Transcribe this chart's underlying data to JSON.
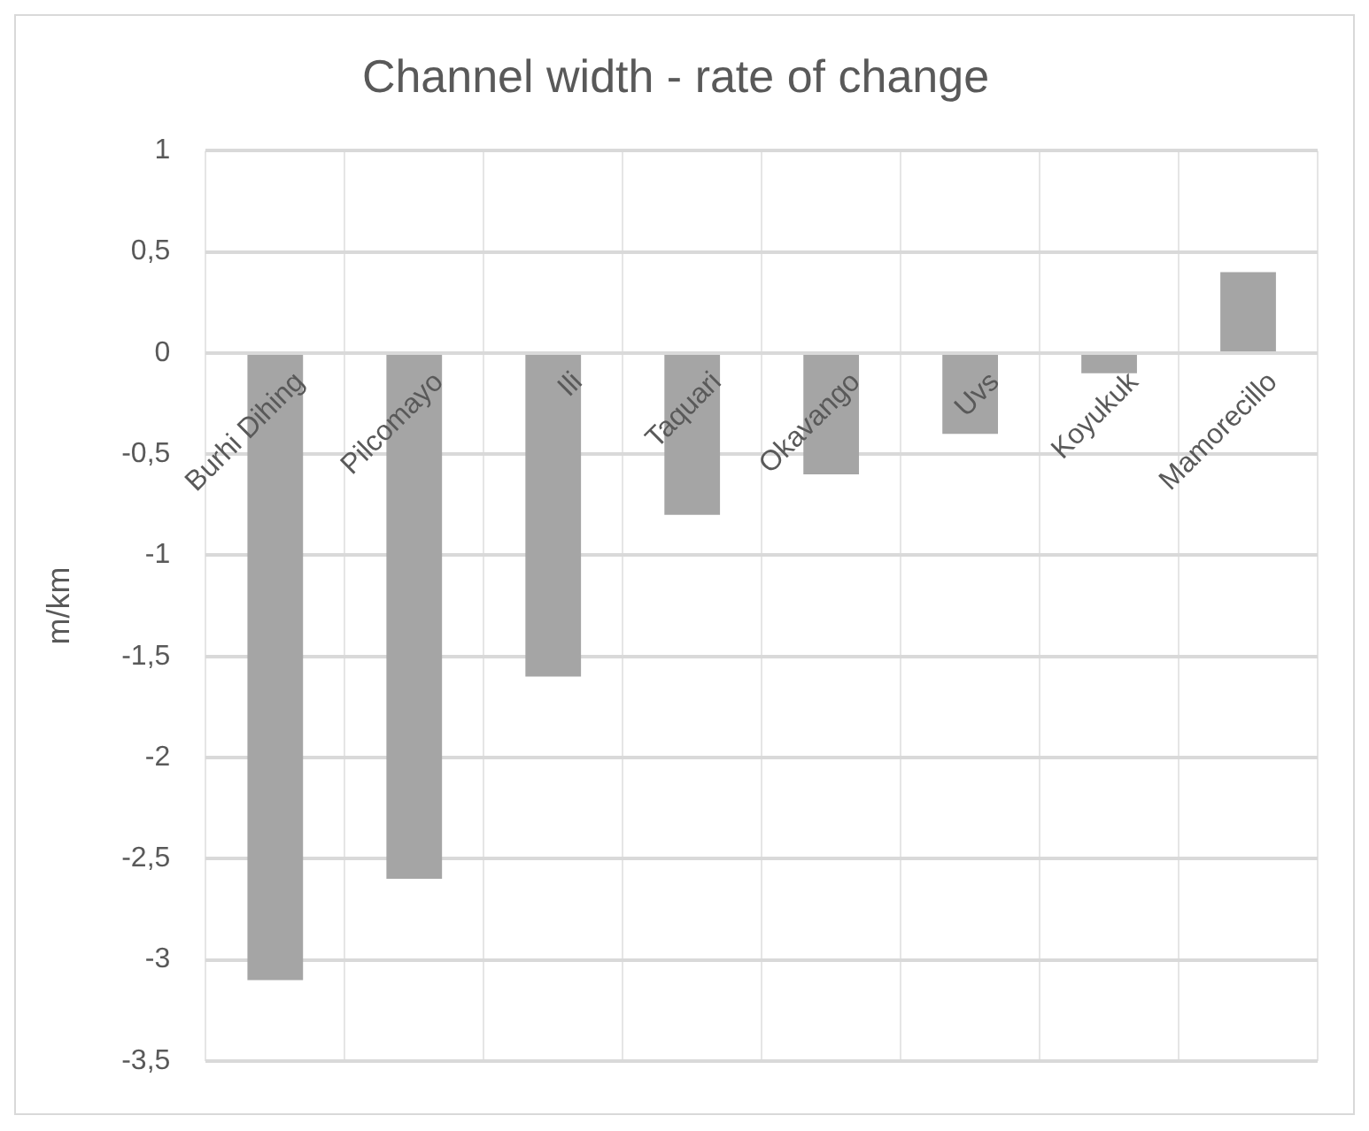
{
  "chart_data": {
    "type": "bar",
    "title": "Channel width - rate of change",
    "ylabel": "m/km",
    "categories": [
      "Burhi Dihing",
      "Pilcomayo",
      "Ili",
      "Taquari",
      "Okavango",
      "Uvs",
      "Koyukuk",
      "Mamorecillo"
    ],
    "values": [
      -3.1,
      -2.6,
      -1.6,
      -0.8,
      -0.6,
      -0.4,
      -0.1,
      0.4
    ],
    "color": "#a5a5a5",
    "ylim": [
      -3.5,
      1
    ],
    "yticks": [
      {
        "value": -3.5,
        "label": "-3,5"
      },
      {
        "value": -3,
        "label": "-3"
      },
      {
        "value": -2.5,
        "label": "-2,5"
      },
      {
        "value": -2,
        "label": "-2"
      },
      {
        "value": -1.5,
        "label": "-1,5"
      },
      {
        "value": -1,
        "label": "-1"
      },
      {
        "value": -0.5,
        "label": "-0,5"
      },
      {
        "value": 0,
        "label": "0"
      },
      {
        "value": 0.5,
        "label": "0,5"
      },
      {
        "value": 1,
        "label": "1"
      }
    ],
    "grid": true
  }
}
